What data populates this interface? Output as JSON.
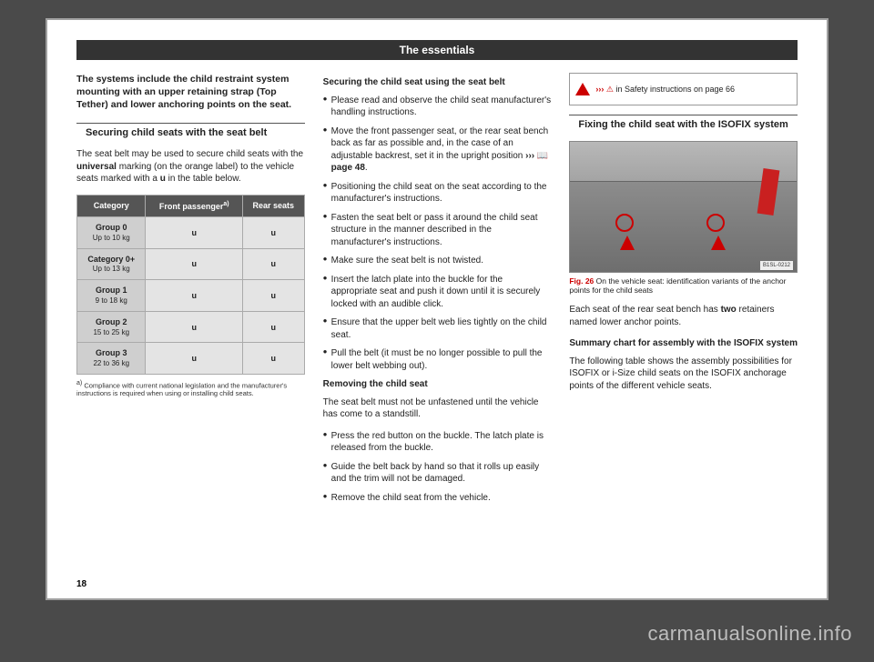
{
  "header": "The essentials",
  "page_number": "18",
  "watermark": "carmanualsonline.info",
  "col1": {
    "intro": "The systems include the child restraint system mounting with an upper retaining strap (Top Tether) and lower anchoring points on the seat.",
    "heading": "Securing child seats with the seat belt",
    "para1_a": "The seat belt may be used to secure child seats with the ",
    "para1_bold": "universal",
    "para1_b": " marking (on the orange label) to the vehicle seats marked with a ",
    "para1_c": " in the table below.",
    "u_letter": "u",
    "table": {
      "headers": [
        "Category",
        "Front passenger",
        "Rear seats"
      ],
      "sup": "a)",
      "rows": [
        {
          "label": "Group 0",
          "sub": "Up to 10 kg",
          "v1": "u",
          "v2": "u"
        },
        {
          "label": "Category 0+",
          "sub": "Up to 13 kg",
          "v1": "u",
          "v2": "u"
        },
        {
          "label": "Group 1",
          "sub": "9 to 18 kg",
          "v1": "u",
          "v2": "u"
        },
        {
          "label": "Group 2",
          "sub": "15 to 25 kg",
          "v1": "u",
          "v2": "u"
        },
        {
          "label": "Group 3",
          "sub": "22 to 36 kg",
          "v1": "u",
          "v2": "u"
        }
      ]
    },
    "footnote_sup": "a)",
    "footnote": "Compliance with current national legislation and the manufacturer's instructions is required when using or installing child seats."
  },
  "col2": {
    "subhead1": "Securing the child seat using the seat belt",
    "b1": "Please read and observe the child seat manufacturer's handling instructions.",
    "b2_a": "Move the front passenger seat, or the rear seat bench back as far as possible and, in the case of an adjustable backrest, set it in the upright position ",
    "b2_chev": "›››",
    "b2_page": " page 48",
    "b2_dot": ".",
    "b3": "Positioning the child seat on the seat according to the manufacturer's instructions.",
    "b4": "Fasten the seat belt or pass it around the child seat structure in the manner described in the manufacturer's instructions.",
    "b5": "Make sure the seat belt is not twisted.",
    "b6": "Insert the latch plate into the buckle for the appropriate seat and push it down until it is securely locked with an audible click.",
    "b7": "Ensure that the upper belt web lies tightly on the child seat.",
    "b8": "Pull the belt (it must be no longer possible to pull the lower belt webbing out).",
    "subhead2": "Removing the child seat",
    "p1": "The seat belt must not be unfastened until the vehicle has come to a standstill.",
    "b9": "Press the red button on the buckle. The latch plate is released from the buckle.",
    "b10": "Guide the belt back by hand so that it rolls up easily and the trim will not be damaged.",
    "b11": "Remove the child seat from the vehicle."
  },
  "col3": {
    "warn_chev": "›››",
    "warn_text": " in Safety instructions on page 66",
    "heading": "Fixing the child seat with the ISOFIX system",
    "fig_code": "B1SL-0212",
    "fig_label": "Fig. 26",
    "fig_caption": "  On the vehicle seat: identification variants of the anchor points for the child seats",
    "p1_a": "Each seat of the rear seat bench has ",
    "p1_bold": "two",
    "p1_b": " retainers named lower anchor points.",
    "subhead": "Summary chart for assembly with the ISOFIX system",
    "p2": "The following table shows the assembly possibilities for ISOFIX or i-Size child seats on the ISOFIX anchorage points of the different vehicle seats."
  }
}
